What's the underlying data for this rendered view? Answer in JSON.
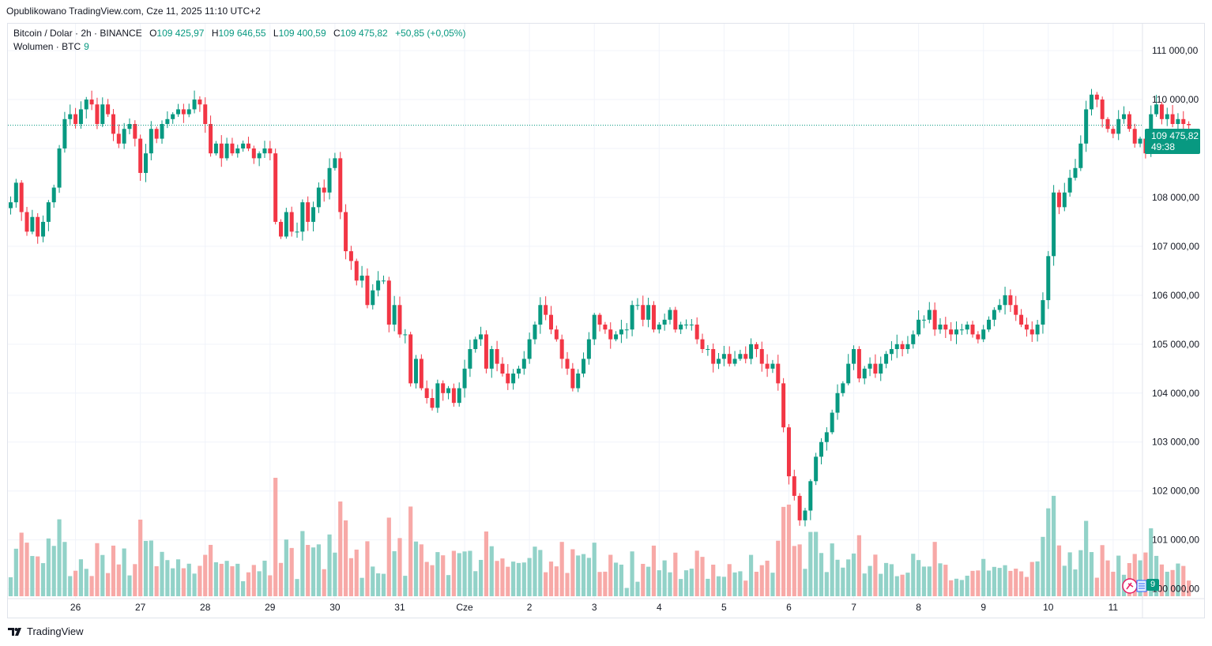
{
  "published": "Opublikowano TradingView.com, Cze 11, 2025 11:10 UTC+2",
  "legend": {
    "symbol": "Bitcoin / Dolar · 2h · BINANCE",
    "o_label": "O",
    "o_value": "109 425,97",
    "h_label": "H",
    "h_value": "109 646,55",
    "l_label": "L",
    "l_value": "109 400,59",
    "c_label": "C",
    "c_value": "109 475,82",
    "change": "+50,85 (+0,05%)",
    "volume_label": "Wolumen · BTC",
    "volume_value": "9"
  },
  "price_badge": {
    "price": "109 475,82",
    "countdown": "49:38"
  },
  "volume_badge": "9",
  "footer": {
    "brand": "TradingView"
  },
  "colors": {
    "up": "#089981",
    "down": "#f23645",
    "up_vol": "#92d2c8",
    "down_vol": "#f7a9a7",
    "grid": "#f0f3fa"
  },
  "chart_data": {
    "type": "candlestick",
    "title": "Bitcoin / Dolar · 2h · BINANCE",
    "y_axis_ticks": [
      "100 000,00",
      "101 000,00",
      "102 000,00",
      "103 000,00",
      "104 000,00",
      "105 000,00",
      "106 000,00",
      "107 000,00",
      "108 000,00",
      "109 000,00",
      "110 000,00",
      "111 000,00"
    ],
    "y_tick_values": [
      100000,
      101000,
      102000,
      103000,
      104000,
      105000,
      106000,
      107000,
      108000,
      109000,
      110000,
      111000
    ],
    "ylim": [
      99800,
      111550
    ],
    "x_axis_ticks": [
      {
        "label": "26",
        "bar": 12
      },
      {
        "label": "27",
        "bar": 24
      },
      {
        "label": "28",
        "bar": 36
      },
      {
        "label": "29",
        "bar": 48
      },
      {
        "label": "30",
        "bar": 60
      },
      {
        "label": "31",
        "bar": 72
      },
      {
        "label": "Cze",
        "bar": 84
      },
      {
        "label": "2",
        "bar": 96
      },
      {
        "label": "3",
        "bar": 108
      },
      {
        "label": "4",
        "bar": 120
      },
      {
        "label": "5",
        "bar": 132
      },
      {
        "label": "6",
        "bar": 144
      },
      {
        "label": "7",
        "bar": 156
      },
      {
        "label": "8",
        "bar": 168
      },
      {
        "label": "9",
        "bar": 180
      },
      {
        "label": "10",
        "bar": 192
      },
      {
        "label": "11",
        "bar": 204
      }
    ],
    "last_price": 109475.82,
    "close": [
      107900,
      108300,
      107700,
      107300,
      107600,
      107200,
      107500,
      107900,
      108200,
      109000,
      109600,
      109700,
      109500,
      109800,
      110000,
      109900,
      109500,
      109900,
      109700,
      109300,
      109100,
      109400,
      109500,
      109200,
      108500,
      108900,
      109400,
      109200,
      109500,
      109600,
      109700,
      109800,
      109700,
      109800,
      110000,
      109900,
      109500,
      108900,
      109100,
      108800,
      109100,
      108900,
      109000,
      109100,
      109000,
      108800,
      108900,
      109000,
      108900,
      107500,
      107200,
      107700,
      107300,
      107300,
      107900,
      107500,
      107800,
      108200,
      108100,
      108600,
      108800,
      107700,
      106900,
      106700,
      106300,
      106400,
      105800,
      106100,
      106300,
      106300,
      105400,
      105800,
      105200,
      105200,
      104200,
      104700,
      104100,
      103900,
      103700,
      104200,
      104000,
      104100,
      103800,
      104100,
      104500,
      104900,
      105100,
      105200,
      104500,
      104900,
      104600,
      104400,
      104200,
      104400,
      104500,
      104700,
      105100,
      105400,
      105800,
      105600,
      105300,
      105100,
      104700,
      104500,
      104100,
      104400,
      104700,
      105100,
      105600,
      105400,
      105300,
      105100,
      105200,
      105300,
      105300,
      105800,
      105800,
      105500,
      105800,
      105300,
      105400,
      105500,
      105700,
      105300,
      105400,
      105400,
      105400,
      105100,
      104900,
      104900,
      104600,
      104700,
      104800,
      104600,
      104700,
      104800,
      104700,
      105000,
      104900,
      104600,
      104500,
      104600,
      104200,
      103300,
      102300,
      101900,
      101400,
      101600,
      102200,
      102700,
      103000,
      103200,
      103600,
      104000,
      104200,
      104600,
      104900,
      104300,
      104500,
      104600,
      104400,
      104600,
      104800,
      104900,
      105000,
      104900,
      105000,
      105200,
      105500,
      105500,
      105700,
      105300,
      105400,
      105300,
      105200,
      105300,
      105300,
      105400,
      105200,
      105100,
      105300,
      105500,
      105700,
      105800,
      106000,
      105800,
      105600,
      105400,
      105300,
      105200,
      105400,
      105900,
      106800,
      108100,
      107800,
      108100,
      108400,
      108600,
      109100,
      109800,
      110100,
      110000,
      109600,
      109400,
      109300,
      109600,
      109700,
      109400,
      109100,
      109200,
      108900,
      109700,
      109900,
      109600,
      109700,
      109500,
      109600,
      109500,
      109476
    ]
  }
}
